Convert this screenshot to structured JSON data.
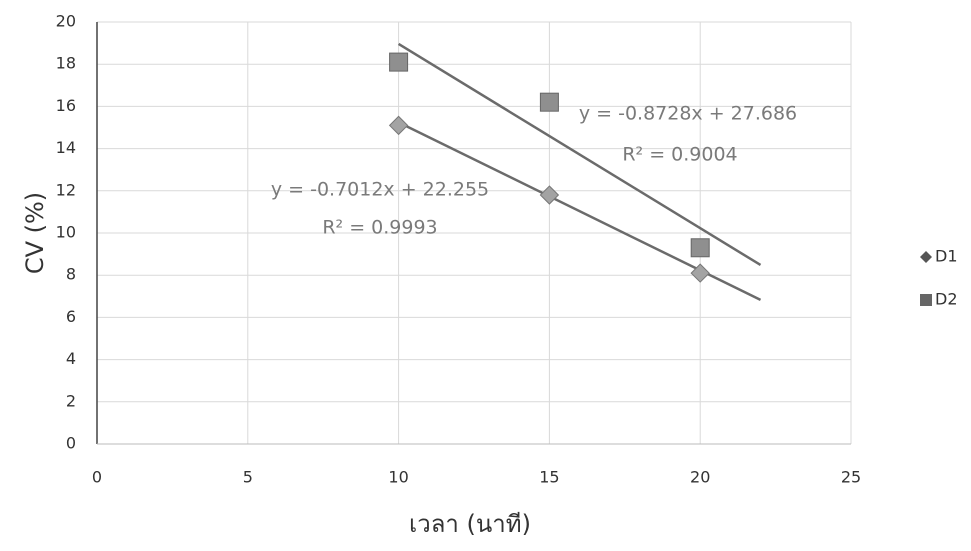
{
  "chart_data": {
    "type": "scatter",
    "x_label": "เวลา (นาที)",
    "y_label": "CV (%)",
    "xlim": [
      0,
      25
    ],
    "xticks": [
      0,
      5,
      10,
      15,
      20,
      25
    ],
    "ylim": [
      0,
      20
    ],
    "yticks": [
      0,
      2,
      4,
      6,
      8,
      10,
      12,
      14,
      16,
      18,
      20
    ],
    "grid": true,
    "legend": "right",
    "series": [
      {
        "name": "D1",
        "color": "#a3a3a3",
        "marker": "diamond",
        "x": [
          10,
          15,
          20
        ],
        "values": [
          15.1,
          11.8,
          8.1
        ],
        "trendline": {
          "slope": -0.7012,
          "intercept": 22.255,
          "xrange": [
            10,
            22
          ],
          "color": "#6b6b6b",
          "equation": "y = -0.7012x + 22.255",
          "r2": "R² = 0.9993"
        }
      },
      {
        "name": "D2",
        "color": "#8f8f8f",
        "marker": "square",
        "x": [
          10,
          15,
          20
        ],
        "values": [
          18.1,
          16.2,
          9.3
        ],
        "trendline": {
          "slope": -0.8728,
          "intercept": 27.686,
          "xrange": [
            10,
            22
          ],
          "color": "#6b6b6b",
          "equation": "y = -0.8728x + 27.686",
          "r2": "R² = 0.9004"
        }
      }
    ]
  }
}
